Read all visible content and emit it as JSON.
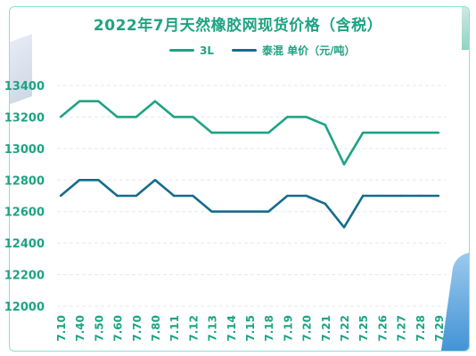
{
  "chart_data": {
    "type": "line",
    "title": "2022年7月天然橡胶网现货价格（含税）",
    "categories": [
      "7.10",
      "7.40",
      "7.50",
      "7.60",
      "7.70",
      "7.80",
      "7.11",
      "7.12",
      "7.13",
      "7.14",
      "7.15",
      "7.18",
      "7.19",
      "7.20",
      "7.21",
      "7.22",
      "7.25",
      "7.26",
      "7.27",
      "7.28",
      "7.29"
    ],
    "ylim": [
      12000,
      13400
    ],
    "yticks": [
      12000,
      12200,
      12400,
      12600,
      12800,
      13000,
      13200,
      13400
    ],
    "series": [
      {
        "name": "3L",
        "color": "#1ea383",
        "values": [
          13200,
          13300,
          13300,
          13200,
          13200,
          13300,
          13200,
          13200,
          13100,
          13100,
          13100,
          13100,
          13200,
          13200,
          13150,
          12900,
          13100,
          13100,
          13100,
          13100,
          13100
        ]
      },
      {
        "name": "泰混 单价（元/吨）",
        "color": "#156c8c",
        "values": [
          12700,
          12800,
          12800,
          12700,
          12700,
          12800,
          12700,
          12700,
          12600,
          12600,
          12600,
          12600,
          12700,
          12700,
          12650,
          12500,
          12700,
          12700,
          12700,
          12700,
          12700
        ]
      }
    ],
    "grid": true,
    "legend": "top-center"
  }
}
